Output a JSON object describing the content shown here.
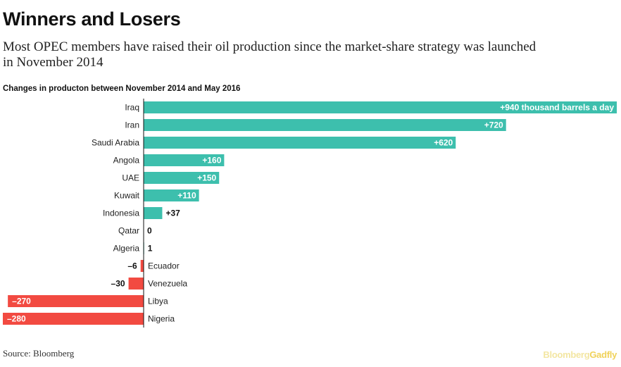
{
  "header": {
    "title": "Winners and Losers",
    "subtitle": "Most OPEC members have raised their oil production since the market-share strategy was launched in November 2014",
    "caption": "Changes in producton between November 2014 and May 2016"
  },
  "footer": {
    "source": "Source: Bloomberg",
    "brand_part1": "Bloomberg",
    "brand_part2": "Gadfly"
  },
  "colors": {
    "positive": "#3dbfad",
    "negative": "#f24a41",
    "axis": "#111111"
  },
  "chart_data": {
    "type": "bar",
    "orientation": "horizontal",
    "title": "Changes in producton between November 2014 and May 2016",
    "unit": "thousand barrels a day",
    "categories": [
      "Iraq",
      "Iran",
      "Saudi Arabia",
      "Angola",
      "UAE",
      "Kuwait",
      "Indonesia",
      "Qatar",
      "Algeria",
      "Ecuador",
      "Venezuela",
      "Libya",
      "Nigeria"
    ],
    "values": [
      940,
      720,
      620,
      160,
      150,
      110,
      37,
      0,
      1,
      -6,
      -30,
      -270,
      -280
    ],
    "labels": [
      "+940 thousand barrels a day",
      "+720",
      "+620",
      "+160",
      "+150",
      "+110",
      "+37",
      "0",
      "1",
      "–6",
      "–30",
      "–270",
      "–280"
    ],
    "xlim": [
      -280,
      940
    ]
  }
}
